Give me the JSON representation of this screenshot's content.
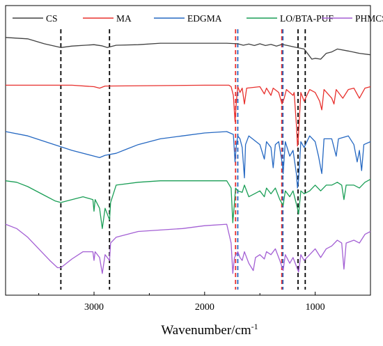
{
  "chart_data": {
    "type": "line",
    "title": "",
    "xlabel": "Wavenumber/cm",
    "xlabel_sup": "-1",
    "ylabel": "",
    "xlim": [
      3800,
      500
    ],
    "x_reversed": true,
    "ylim": [
      0,
      100
    ],
    "y_ticks_shown": false,
    "grid": false,
    "legend_position": "top",
    "x_ticks": [
      {
        "value": 3000,
        "label": "3000"
      },
      {
        "value": 2000,
        "label": "2000"
      },
      {
        "value": 1000,
        "label": "1000"
      }
    ],
    "series": [
      {
        "name": "CS",
        "color": "#404040",
        "points": [
          [
            3800,
            89
          ],
          [
            3600,
            88.5
          ],
          [
            3450,
            86.8
          ],
          [
            3300,
            85.5
          ],
          [
            3200,
            86
          ],
          [
            3000,
            86.5
          ],
          [
            2930,
            86.1
          ],
          [
            2880,
            85.5
          ],
          [
            2800,
            86.3
          ],
          [
            2600,
            86.5
          ],
          [
            2400,
            87
          ],
          [
            2000,
            87
          ],
          [
            1800,
            87
          ],
          [
            1700,
            86.8
          ],
          [
            1650,
            86.3
          ],
          [
            1600,
            86.7
          ],
          [
            1550,
            86.2
          ],
          [
            1500,
            86.8
          ],
          [
            1450,
            86.2
          ],
          [
            1400,
            86.6
          ],
          [
            1350,
            86
          ],
          [
            1300,
            86.6
          ],
          [
            1250,
            86.2
          ],
          [
            1200,
            85.8
          ],
          [
            1150,
            85.4
          ],
          [
            1100,
            85
          ],
          [
            1060,
            83
          ],
          [
            1030,
            81.5
          ],
          [
            1000,
            81.8
          ],
          [
            950,
            81.5
          ],
          [
            900,
            83.5
          ],
          [
            850,
            84
          ],
          [
            800,
            85
          ],
          [
            700,
            84.3
          ],
          [
            600,
            83.5
          ],
          [
            500,
            83
          ]
        ]
      },
      {
        "name": "MA",
        "color": "#e8302d",
        "points": [
          [
            3800,
            72.5
          ],
          [
            3200,
            72.5
          ],
          [
            3000,
            72
          ],
          [
            2950,
            71.5
          ],
          [
            2900,
            72.2
          ],
          [
            2000,
            72.5
          ],
          [
            1780,
            72.5
          ],
          [
            1760,
            72
          ],
          [
            1740,
            69
          ],
          [
            1725,
            60
          ],
          [
            1712,
            67
          ],
          [
            1700,
            72
          ],
          [
            1680,
            70
          ],
          [
            1660,
            71.5
          ],
          [
            1640,
            66
          ],
          [
            1620,
            71.5
          ],
          [
            1500,
            72
          ],
          [
            1460,
            69.5
          ],
          [
            1440,
            71.5
          ],
          [
            1400,
            69
          ],
          [
            1380,
            71.5
          ],
          [
            1330,
            70
          ],
          [
            1300,
            66
          ],
          [
            1280,
            68
          ],
          [
            1260,
            71
          ],
          [
            1200,
            69
          ],
          [
            1190,
            70
          ],
          [
            1170,
            59
          ],
          [
            1160,
            51.5
          ],
          [
            1155,
            52.5
          ],
          [
            1130,
            70
          ],
          [
            1100,
            67
          ],
          [
            1050,
            71
          ],
          [
            1000,
            70
          ],
          [
            960,
            67
          ],
          [
            940,
            64
          ],
          [
            920,
            71
          ],
          [
            850,
            68
          ],
          [
            830,
            66
          ],
          [
            810,
            71
          ],
          [
            750,
            68
          ],
          [
            700,
            71
          ],
          [
            650,
            71.5
          ],
          [
            600,
            68
          ],
          [
            550,
            71.5
          ],
          [
            500,
            72
          ]
        ]
      },
      {
        "name": "EDGMA",
        "color": "#2568c2",
        "points": [
          [
            3800,
            56.5
          ],
          [
            3600,
            55
          ],
          [
            3400,
            52.5
          ],
          [
            3200,
            50
          ],
          [
            3000,
            48
          ],
          [
            2950,
            47.5
          ],
          [
            2900,
            48.3
          ],
          [
            2800,
            49
          ],
          [
            2700,
            50.5
          ],
          [
            2600,
            52
          ],
          [
            2400,
            54
          ],
          [
            2200,
            55
          ],
          [
            2000,
            56
          ],
          [
            1800,
            56.5
          ],
          [
            1740,
            55.5
          ],
          [
            1725,
            46
          ],
          [
            1712,
            52
          ],
          [
            1700,
            55
          ],
          [
            1680,
            54
          ],
          [
            1660,
            51
          ],
          [
            1640,
            40.5
          ],
          [
            1630,
            52
          ],
          [
            1600,
            55
          ],
          [
            1500,
            52
          ],
          [
            1460,
            47
          ],
          [
            1440,
            53
          ],
          [
            1400,
            51
          ],
          [
            1380,
            44
          ],
          [
            1360,
            52
          ],
          [
            1330,
            53
          ],
          [
            1300,
            46
          ],
          [
            1290,
            42
          ],
          [
            1270,
            53
          ],
          [
            1230,
            48
          ],
          [
            1200,
            50
          ],
          [
            1170,
            42
          ],
          [
            1160,
            37
          ],
          [
            1150,
            40
          ],
          [
            1130,
            53
          ],
          [
            1100,
            51
          ],
          [
            1050,
            55
          ],
          [
            1000,
            53
          ],
          [
            970,
            48
          ],
          [
            950,
            44
          ],
          [
            940,
            42
          ],
          [
            920,
            54
          ],
          [
            850,
            54
          ],
          [
            810,
            48
          ],
          [
            790,
            54
          ],
          [
            700,
            55
          ],
          [
            650,
            52
          ],
          [
            620,
            46
          ],
          [
            600,
            50
          ],
          [
            580,
            43
          ],
          [
            560,
            52
          ],
          [
            500,
            53
          ]
        ]
      },
      {
        "name": "LO/BTA-PUF",
        "color": "#1a9e56",
        "points": [
          [
            3800,
            39.5
          ],
          [
            3700,
            39
          ],
          [
            3600,
            37.5
          ],
          [
            3450,
            34.5
          ],
          [
            3350,
            32.5
          ],
          [
            3300,
            32
          ],
          [
            3200,
            33
          ],
          [
            3100,
            34
          ],
          [
            3010,
            33
          ],
          [
            3000,
            29
          ],
          [
            2990,
            33
          ],
          [
            2950,
            30
          ],
          [
            2925,
            23
          ],
          [
            2900,
            30
          ],
          [
            2860,
            26
          ],
          [
            2850,
            32
          ],
          [
            2800,
            38
          ],
          [
            2600,
            39
          ],
          [
            2400,
            39.5
          ],
          [
            2000,
            39.5
          ],
          [
            1800,
            39.5
          ],
          [
            1760,
            37
          ],
          [
            1745,
            25
          ],
          [
            1730,
            32
          ],
          [
            1720,
            37
          ],
          [
            1700,
            36
          ],
          [
            1660,
            35.5
          ],
          [
            1640,
            38
          ],
          [
            1600,
            34
          ],
          [
            1550,
            35
          ],
          [
            1500,
            36
          ],
          [
            1460,
            34
          ],
          [
            1440,
            37
          ],
          [
            1400,
            35
          ],
          [
            1360,
            37
          ],
          [
            1320,
            33
          ],
          [
            1290,
            31
          ],
          [
            1270,
            36
          ],
          [
            1230,
            34
          ],
          [
            1200,
            36
          ],
          [
            1160,
            30
          ],
          [
            1150,
            28
          ],
          [
            1130,
            36
          ],
          [
            1100,
            35
          ],
          [
            1050,
            36
          ],
          [
            1000,
            38
          ],
          [
            950,
            36
          ],
          [
            900,
            38
          ],
          [
            850,
            38
          ],
          [
            800,
            39
          ],
          [
            760,
            38
          ],
          [
            740,
            33
          ],
          [
            720,
            38
          ],
          [
            650,
            38
          ],
          [
            600,
            37
          ],
          [
            550,
            39
          ],
          [
            500,
            40
          ]
        ]
      },
      {
        "name": "PHMCS",
        "color": "#a35fd4",
        "points": [
          [
            3800,
            24.5
          ],
          [
            3700,
            23
          ],
          [
            3600,
            20
          ],
          [
            3500,
            16
          ],
          [
            3400,
            12
          ],
          [
            3330,
            9.5
          ],
          [
            3300,
            9.5
          ],
          [
            3200,
            12.5
          ],
          [
            3100,
            15
          ],
          [
            3010,
            15
          ],
          [
            3000,
            12
          ],
          [
            2990,
            15
          ],
          [
            2950,
            13
          ],
          [
            2925,
            7.5
          ],
          [
            2900,
            14
          ],
          [
            2860,
            12
          ],
          [
            2850,
            18
          ],
          [
            2800,
            20
          ],
          [
            2600,
            22
          ],
          [
            2400,
            22.5
          ],
          [
            2200,
            23
          ],
          [
            2000,
            24
          ],
          [
            1800,
            24.5
          ],
          [
            1760,
            18
          ],
          [
            1745,
            7.5
          ],
          [
            1730,
            13
          ],
          [
            1700,
            15
          ],
          [
            1680,
            13
          ],
          [
            1660,
            12
          ],
          [
            1640,
            15
          ],
          [
            1600,
            11
          ],
          [
            1560,
            8.5
          ],
          [
            1540,
            13
          ],
          [
            1500,
            14
          ],
          [
            1460,
            12.5
          ],
          [
            1440,
            15
          ],
          [
            1400,
            14
          ],
          [
            1360,
            16
          ],
          [
            1320,
            12
          ],
          [
            1290,
            8.5
          ],
          [
            1270,
            14
          ],
          [
            1230,
            11
          ],
          [
            1200,
            13
          ],
          [
            1160,
            9
          ],
          [
            1150,
            8
          ],
          [
            1130,
            14
          ],
          [
            1100,
            12
          ],
          [
            1050,
            14
          ],
          [
            1000,
            16
          ],
          [
            950,
            13
          ],
          [
            900,
            16
          ],
          [
            850,
            17
          ],
          [
            800,
            19
          ],
          [
            760,
            18
          ],
          [
            740,
            9
          ],
          [
            720,
            18
          ],
          [
            650,
            19
          ],
          [
            600,
            18
          ],
          [
            550,
            21
          ],
          [
            500,
            22
          ]
        ]
      }
    ],
    "reference_lines": [
      {
        "x": 3300,
        "color": "#000000",
        "style": "dashed"
      },
      {
        "x": 2860,
        "color": "#000000",
        "style": "dashed"
      },
      {
        "x": 1720,
        "color": "#e8302d",
        "style": "dashed"
      },
      {
        "x": 1700,
        "color": "#2568c2",
        "style": "dashed"
      },
      {
        "x": 1302,
        "color": "#e8302d",
        "style": "dashed"
      },
      {
        "x": 1292,
        "color": "#2568c2",
        "style": "dashed"
      },
      {
        "x": 1155,
        "color": "#000000",
        "style": "dashed"
      },
      {
        "x": 1090,
        "color": "#000000",
        "style": "dashed"
      }
    ]
  }
}
